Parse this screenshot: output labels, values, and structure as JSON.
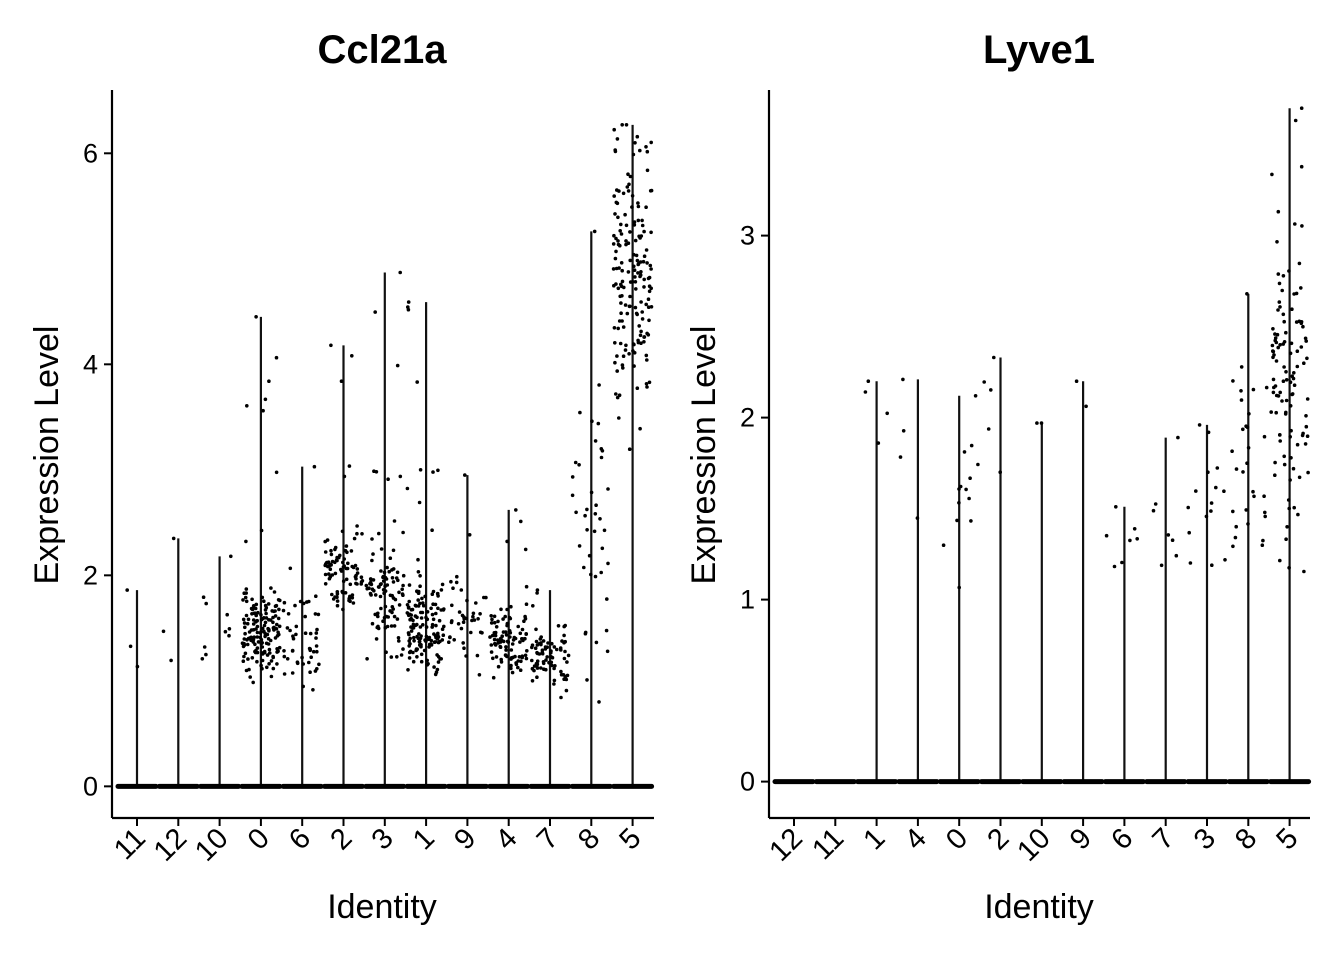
{
  "chart_data": [
    {
      "type": "violin",
      "title": "Ccl21a",
      "xlabel": "Identity",
      "ylabel": "Expression Level",
      "ylim": [
        -0.3,
        6.6
      ],
      "yticks": [
        0,
        2,
        4,
        6
      ],
      "grid": false,
      "legend": "none",
      "categories": [
        "11",
        "12",
        "10",
        "0",
        "6",
        "2",
        "3",
        "1",
        "9",
        "4",
        "7",
        "8",
        "5"
      ],
      "max_values": [
        1.86,
        2.35,
        2.18,
        4.45,
        3.03,
        4.18,
        4.87,
        4.59,
        2.95,
        2.62,
        1.86,
        5.26,
        6.27
      ],
      "cluster_center": [
        1.3,
        1.35,
        1.6,
        1.45,
        1.3,
        2.05,
        1.8,
        1.5,
        1.5,
        1.35,
        1.25,
        2.5,
        4.8
      ],
      "cluster_spread": [
        0.3,
        0.4,
        0.45,
        0.3,
        0.4,
        0.3,
        0.45,
        0.35,
        0.35,
        0.3,
        0.25,
        1.2,
        1.1
      ],
      "nonzero_points": [
        3,
        3,
        10,
        160,
        50,
        90,
        100,
        150,
        40,
        100,
        80,
        40,
        170
      ],
      "dominant_value": 0
    },
    {
      "type": "violin",
      "title": "Lyve1",
      "xlabel": "Identity",
      "ylabel": "Expression Level",
      "ylim": [
        -0.2,
        3.8
      ],
      "yticks": [
        0,
        1,
        2,
        3
      ],
      "grid": false,
      "legend": "none",
      "categories": [
        "12",
        "11",
        "1",
        "4",
        "0",
        "2",
        "10",
        "9",
        "6",
        "7",
        "3",
        "8",
        "5"
      ],
      "max_values": [
        0,
        0,
        2.2,
        2.21,
        2.12,
        2.33,
        1.97,
        2.2,
        1.51,
        1.89,
        1.96,
        2.68,
        3.7
      ],
      "cluster_center": [
        0,
        0,
        1.8,
        1.7,
        1.5,
        2.1,
        1.9,
        1.9,
        1.3,
        1.3,
        1.5,
        1.7,
        2.2
      ],
      "cluster_spread": [
        0,
        0,
        0.35,
        0.4,
        0.35,
        0.3,
        0.1,
        0.3,
        0.2,
        0.3,
        0.3,
        0.5,
        0.7
      ],
      "nonzero_points": [
        0,
        0,
        4,
        4,
        14,
        5,
        2,
        2,
        7,
        7,
        15,
        30,
        110
      ],
      "dominant_value": 0
    }
  ]
}
